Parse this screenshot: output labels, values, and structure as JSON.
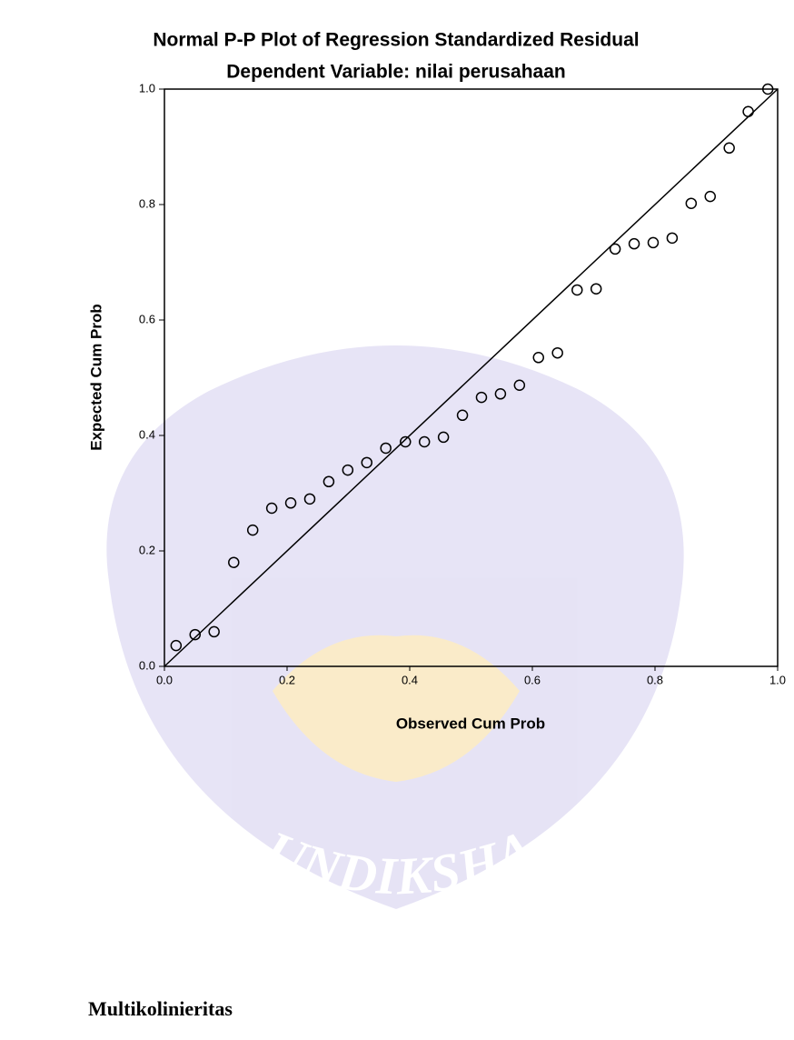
{
  "chart_data": {
    "type": "scatter",
    "title": "Normal P-P Plot of Regression Standardized Residual",
    "subtitle": "Dependent Variable: nilai perusahaan",
    "x_label": "Observed Cum Prob",
    "y_label": "Expected Cum Prob",
    "x": [
      0.019,
      0.05,
      0.081,
      0.113,
      0.144,
      0.175,
      0.206,
      0.237,
      0.268,
      0.299,
      0.33,
      0.361,
      0.393,
      0.424,
      0.455,
      0.486,
      0.517,
      0.548,
      0.579,
      0.61,
      0.641,
      0.673,
      0.704,
      0.735,
      0.766,
      0.797,
      0.828,
      0.859,
      0.89,
      0.921,
      0.952,
      0.984
    ],
    "values": [
      0.036,
      0.055,
      0.06,
      0.18,
      0.236,
      0.274,
      0.283,
      0.29,
      0.32,
      0.34,
      0.353,
      0.378,
      0.389,
      0.389,
      0.397,
      0.435,
      0.466,
      0.472,
      0.487,
      0.535,
      0.543,
      0.652,
      0.654,
      0.723,
      0.732,
      0.734,
      0.742,
      0.802,
      0.814,
      0.898,
      0.961,
      1.0
    ],
    "color": "#000000",
    "xlim": [
      0,
      1
    ],
    "ylim": [
      0,
      1
    ],
    "xticks": [
      {
        "value": 0,
        "label": "0.0"
      },
      0.2,
      0.4,
      0.6,
      0.8,
      {
        "value": 1,
        "label": "1.0"
      }
    ],
    "yticks": [
      {
        "value": 0,
        "label": "0.0"
      },
      0.2,
      0.4,
      0.6,
      0.8,
      {
        "value": 1,
        "label": "1.0"
      }
    ],
    "reference_line": true
  },
  "watermark": "UNDIKSHA",
  "heading": "Multikolinieritas"
}
